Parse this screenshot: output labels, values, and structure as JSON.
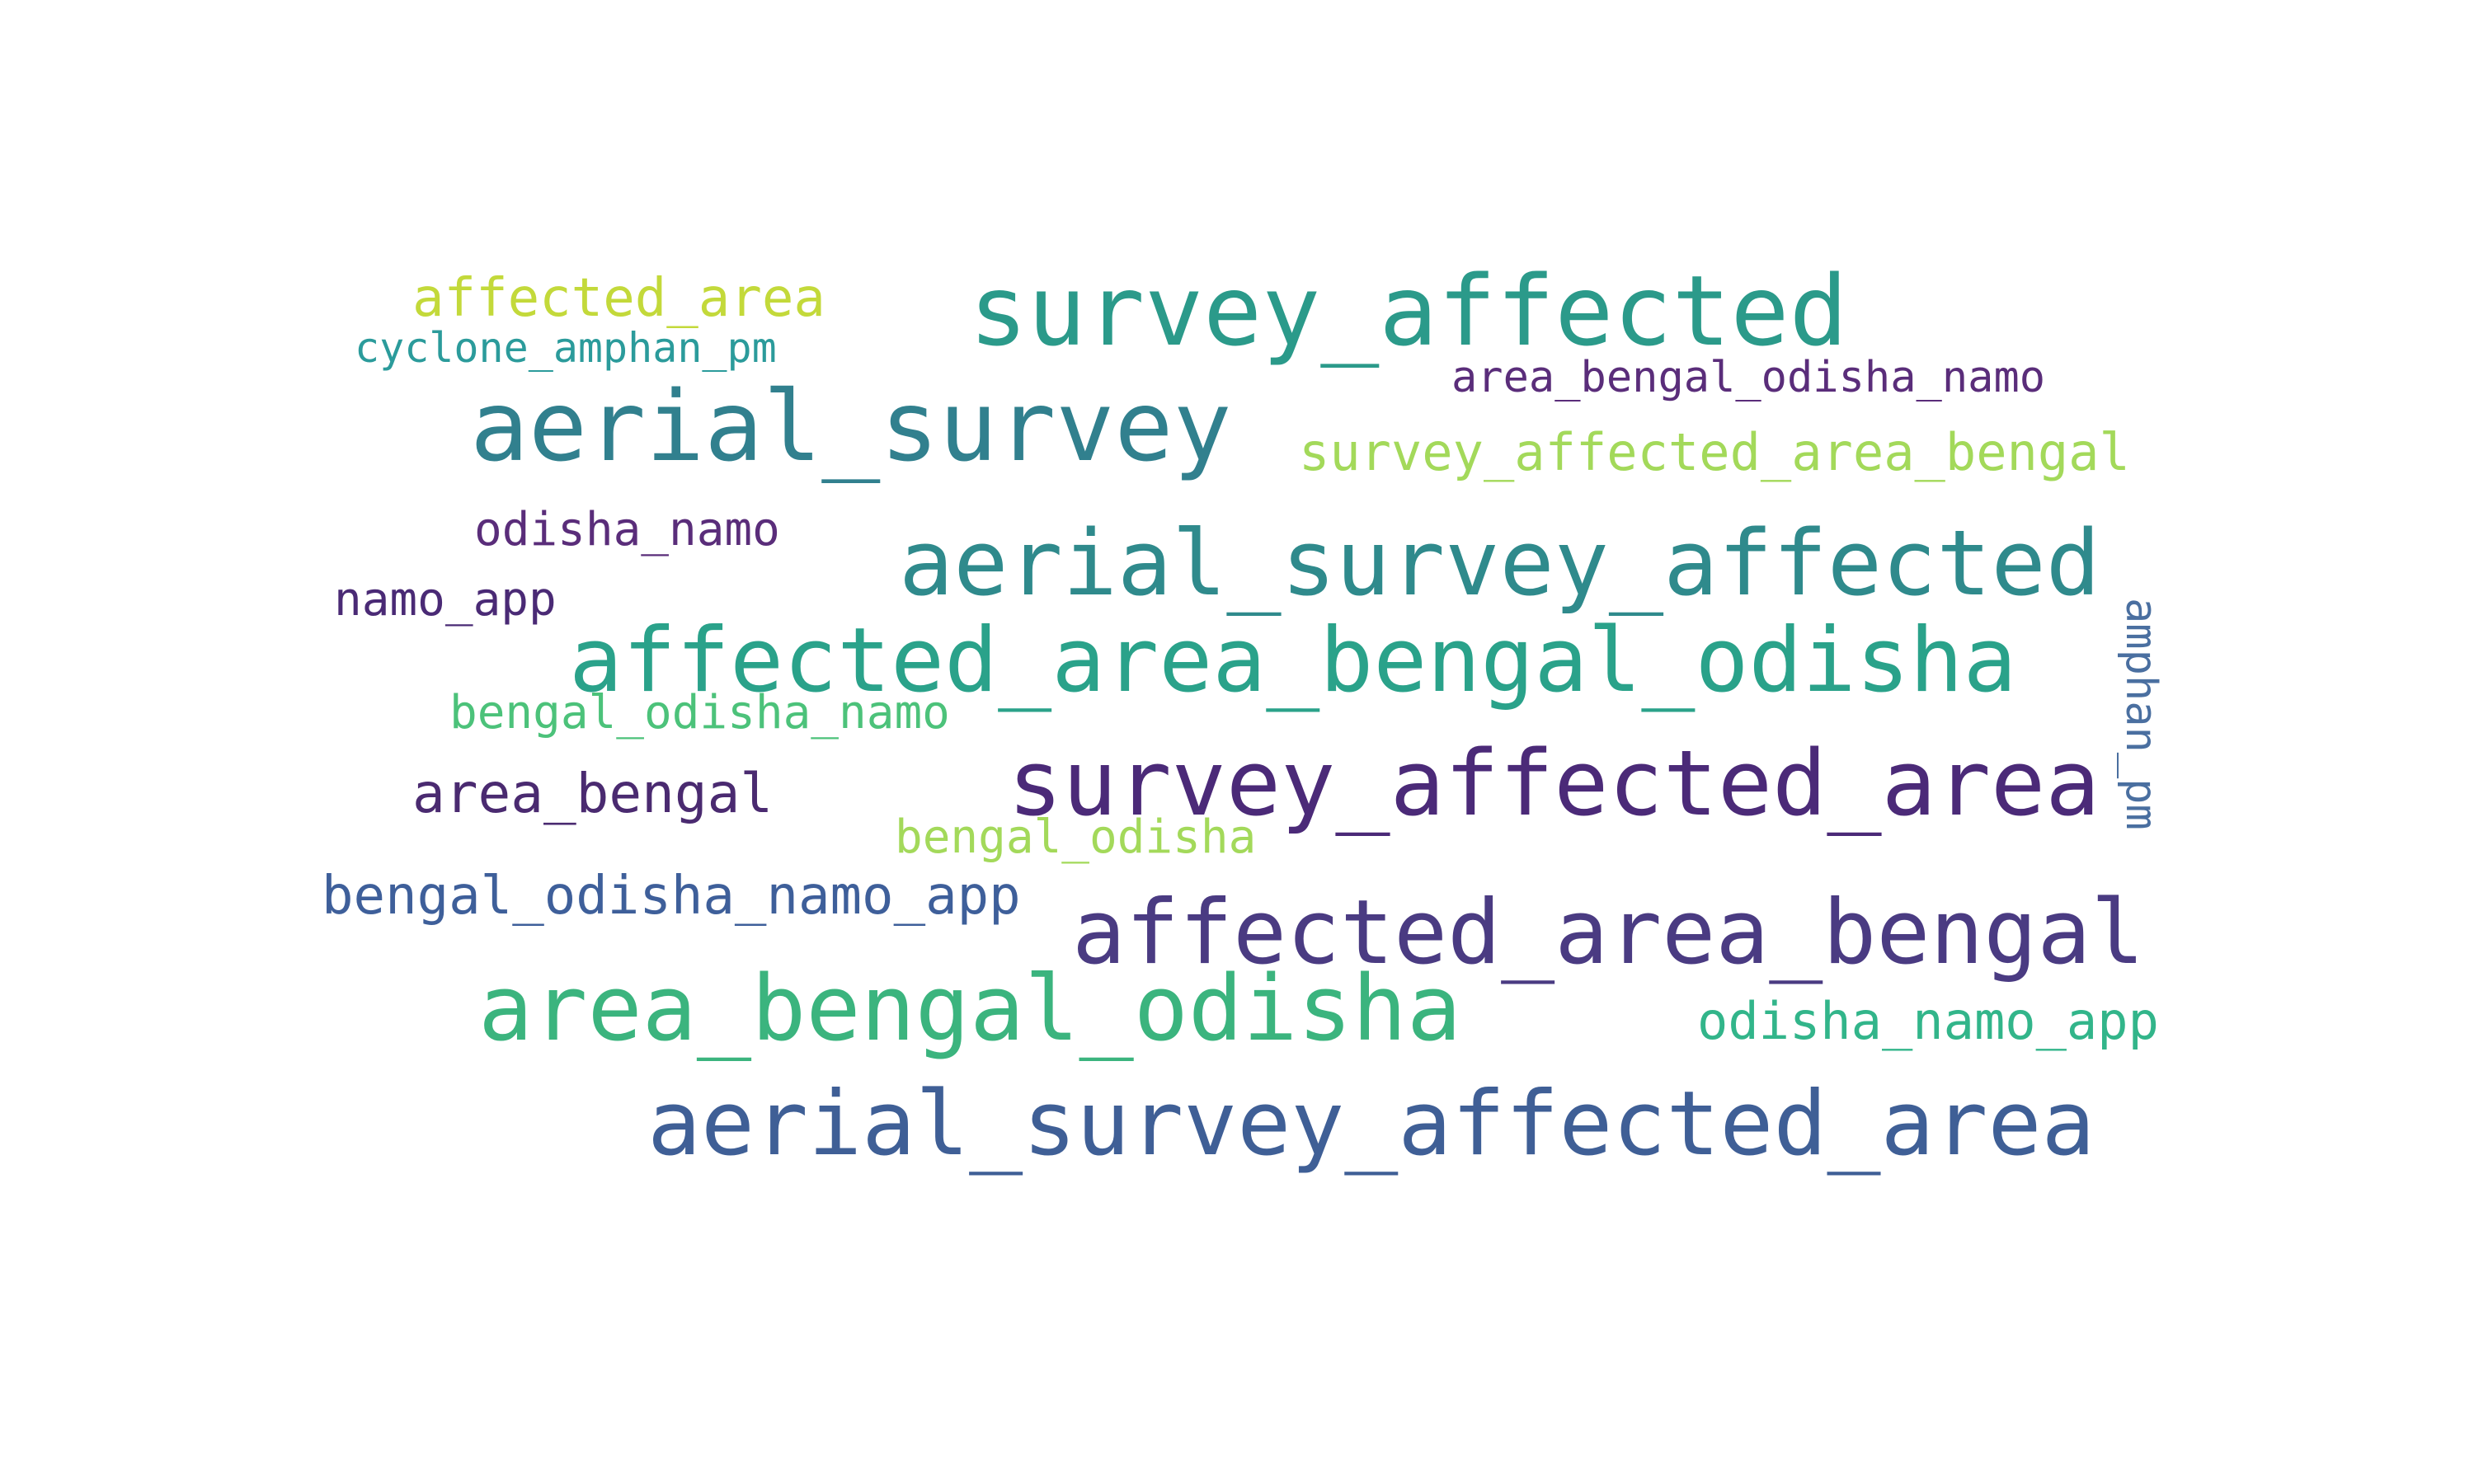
{
  "words": [
    {
      "text": "survey_affected",
      "color": "#2b9a8a"
    },
    {
      "text": "aerial_survey",
      "color": "#31808e"
    },
    {
      "text": "aerial_survey_affected",
      "color": "#2f8a8c"
    },
    {
      "text": "affected_area_bengal_odisha",
      "color": "#2aa28a"
    },
    {
      "text": "survey_affected_area",
      "color": "#4b2a78"
    },
    {
      "text": "affected_area_bengal",
      "color": "#4a3b82"
    },
    {
      "text": "area_bengal_odisha",
      "color": "#3bb47e"
    },
    {
      "text": "aerial_survey_affected_area",
      "color": "#3f5f96"
    },
    {
      "text": "affected_area",
      "color": "#c3d93a"
    },
    {
      "text": "cyclone_amphan_pm",
      "color": "#2b9b9b"
    },
    {
      "text": "area_bengal_odisha_namo",
      "color": "#5a2d7a"
    },
    {
      "text": "survey_affected_area_bengal",
      "color": "#a3d95a"
    },
    {
      "text": "odisha_namo",
      "color": "#5a2d7a"
    },
    {
      "text": "namo_app",
      "color": "#4a2a75"
    },
    {
      "text": "bengal_odisha_namo",
      "color": "#4cc27a"
    },
    {
      "text": "area_bengal",
      "color": "#4a2a70"
    },
    {
      "text": "bengal_odisha",
      "color": "#a3d95a"
    },
    {
      "text": "bengal_odisha_namo_app",
      "color": "#3e5f9a"
    },
    {
      "text": "odisha_namo_app",
      "color": "#32b58a"
    },
    {
      "text": "amphan_pm",
      "color": "#4a6fa0"
    }
  ]
}
